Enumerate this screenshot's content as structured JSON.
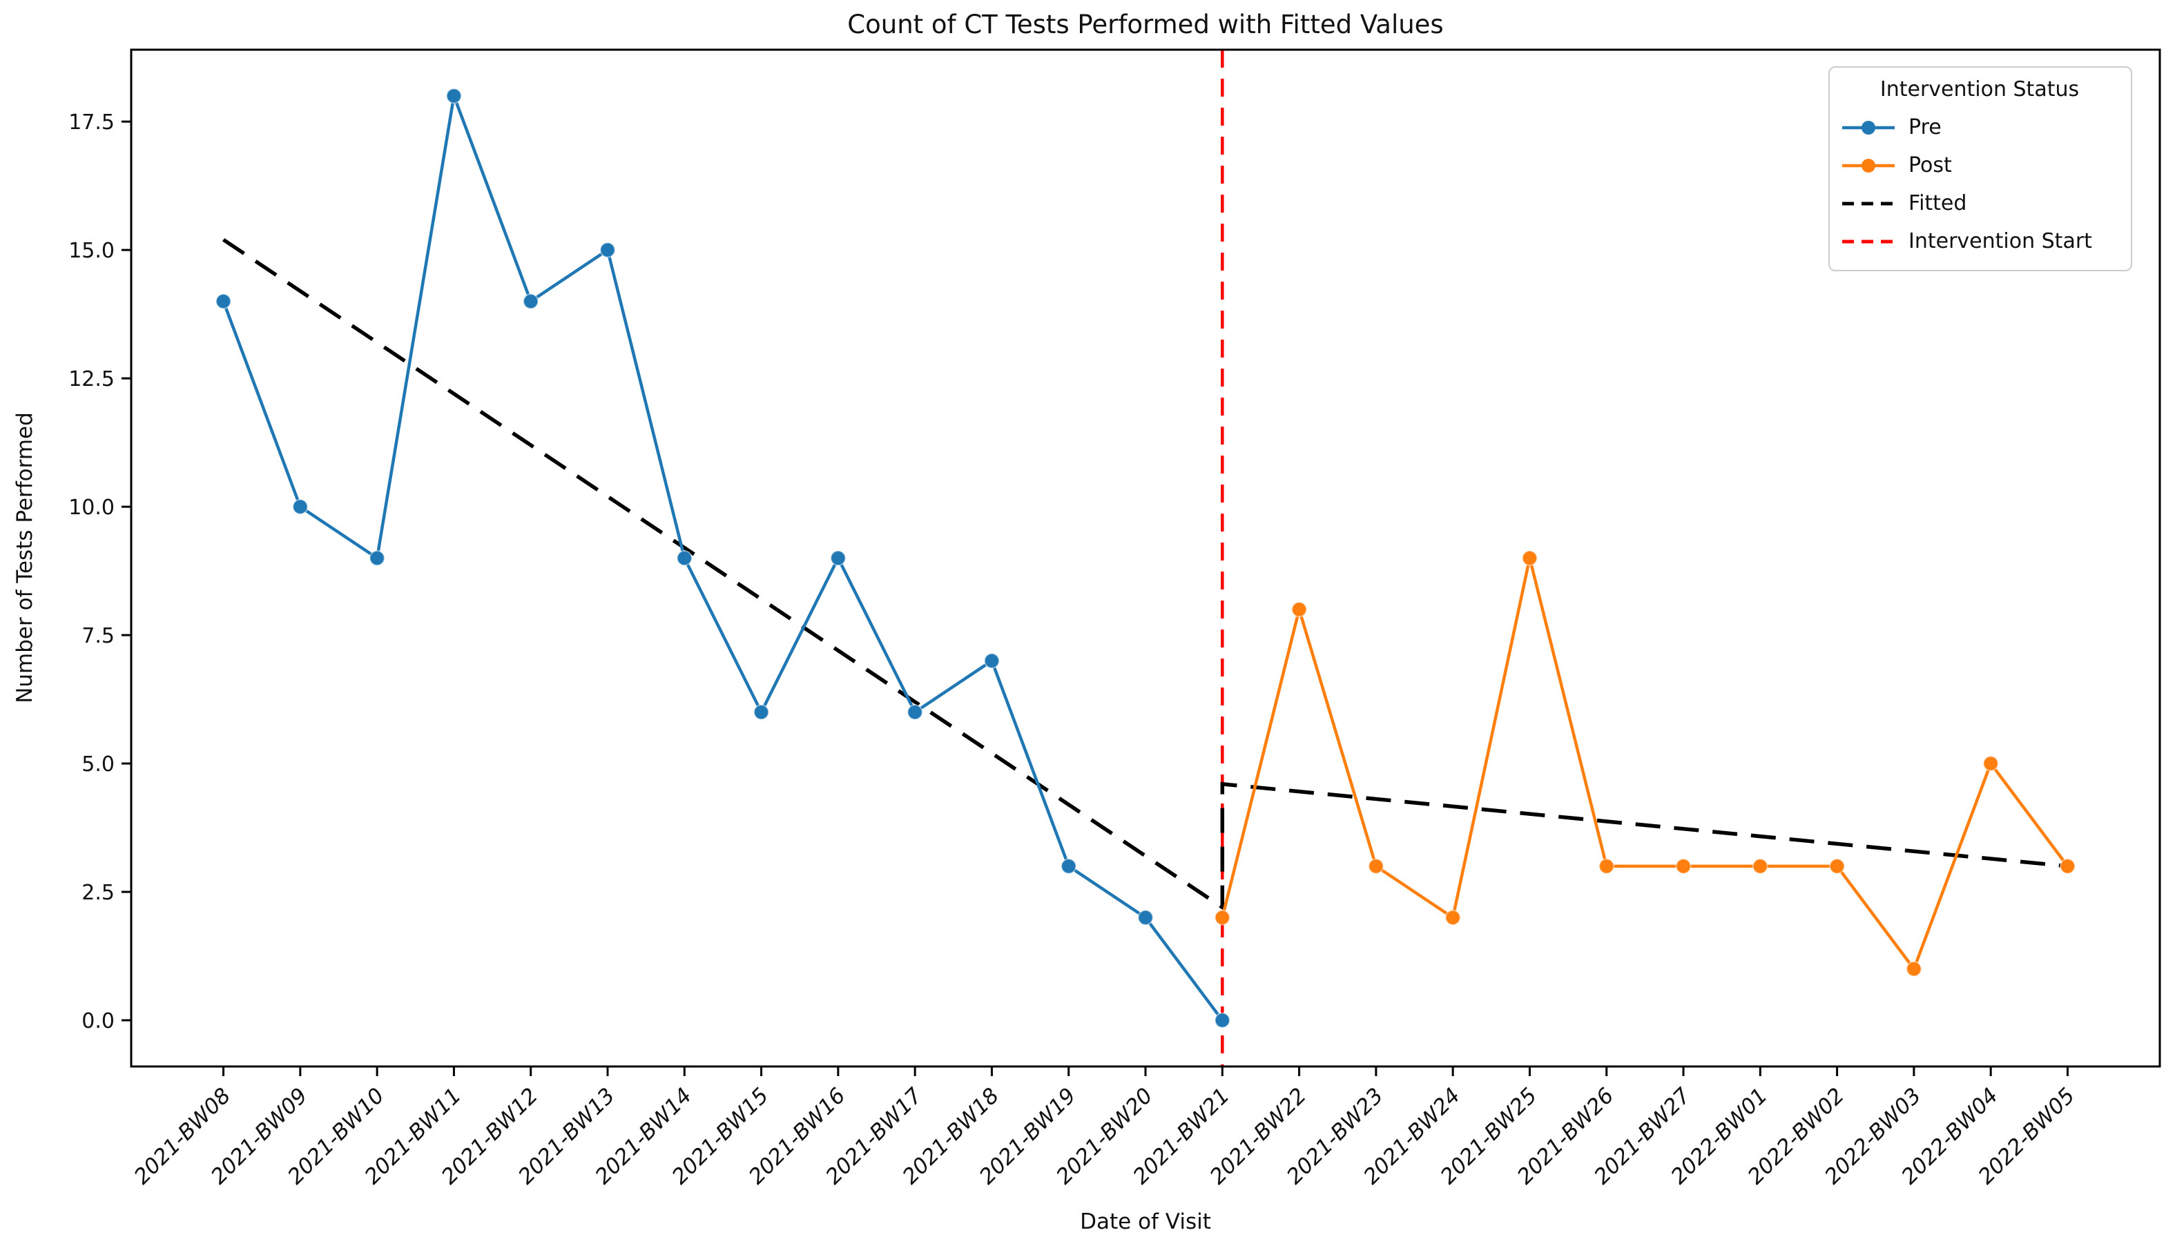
{
  "figure": {
    "background": "#ffffff"
  },
  "chart_data": {
    "type": "line",
    "title": "Count of CT Tests Performed with Fitted Values",
    "xlabel": "Date of Visit",
    "ylabel": "Number of Tests Performed",
    "categories": [
      "2021-BW08",
      "2021-BW09",
      "2021-BW10",
      "2021-BW11",
      "2021-BW12",
      "2021-BW13",
      "2021-BW14",
      "2021-BW15",
      "2021-BW16",
      "2021-BW17",
      "2021-BW18",
      "2021-BW19",
      "2021-BW20",
      "2021-BW21",
      "2021-BW22",
      "2021-BW23",
      "2021-BW24",
      "2021-BW25",
      "2021-BW26",
      "2021-BW27",
      "2022-BW01",
      "2022-BW02",
      "2022-BW03",
      "2022-BW04",
      "2022-BW05"
    ],
    "y_ticks": [
      0,
      2.5,
      5,
      7.5,
      10,
      12.5,
      15,
      17.5
    ],
    "y_tick_labels": [
      "0.0",
      "2.5",
      "5.0",
      "7.5",
      "10.0",
      "12.5",
      "15.0",
      "17.5"
    ],
    "ylim": [
      -0.9,
      18.9
    ],
    "x_pad": 1.2,
    "grid": false,
    "legend": {
      "title": "Intervention Status",
      "position": "upper right",
      "entries": [
        "Pre",
        "Post",
        "Fitted",
        "Intervention Start"
      ]
    },
    "series": [
      {
        "name": "Pre",
        "kind": "line_markers",
        "color": "#1f77b4",
        "start_index": 0,
        "values": [
          14,
          10,
          9,
          18,
          14,
          15,
          9,
          6,
          9,
          6,
          7,
          3,
          2,
          0
        ]
      },
      {
        "name": "Post",
        "kind": "line_markers",
        "color": "#ff7f0e",
        "start_index": 13,
        "values": [
          2,
          8,
          3,
          2,
          9,
          3,
          3,
          3,
          3,
          1,
          5,
          3
        ]
      },
      {
        "name": "Fitted",
        "kind": "dashed_line",
        "color": "#000000",
        "points": [
          [
            0,
            15.2
          ],
          [
            13,
            2.2
          ],
          [
            13,
            4.6
          ],
          [
            24,
            3.0
          ]
        ]
      },
      {
        "name": "Intervention Start",
        "kind": "vline_dashed",
        "color": "#ff0000",
        "x_index": 13,
        "at_category": "2021-BW21"
      }
    ]
  }
}
